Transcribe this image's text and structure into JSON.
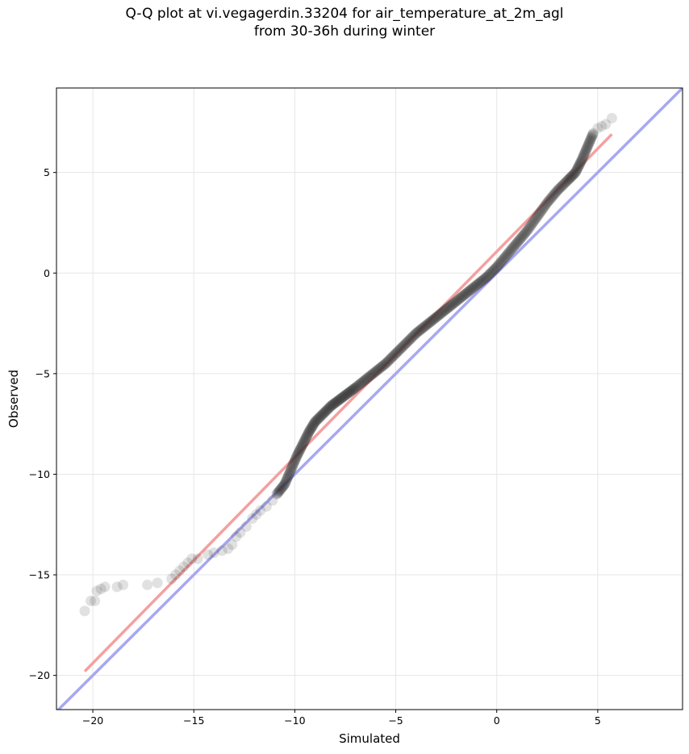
{
  "chart_data": {
    "type": "scatter",
    "title": "Q-Q plot at vi.vegagerdin.33204 for air_temperature_at_2m_agl\nfrom 30-36h during winter",
    "xlabel": "Simulated",
    "ylabel": "Observed",
    "xlim": [
      -21.8,
      9.2
    ],
    "ylim": [
      -21.7,
      9.2
    ],
    "xticks": [
      -20,
      -15,
      -10,
      -5,
      0,
      5
    ],
    "yticks": [
      -20,
      -15,
      -10,
      -5,
      0,
      5
    ],
    "xtick_labels": [
      "−20",
      "−15",
      "−10",
      "−5",
      "0",
      "5"
    ],
    "ytick_labels": [
      "−20",
      "−15",
      "−10",
      "−5",
      "0",
      "5"
    ],
    "grid": true,
    "legend": "none",
    "series_colors": {
      "points": "#333333",
      "fit_line": "#f4a0a0",
      "identity_line": "#a8a8f0"
    },
    "fit_line": {
      "x": [
        -20.4,
        5.7
      ],
      "y": [
        -19.8,
        6.9
      ]
    },
    "identity_line": {
      "x": [
        -21.8,
        9.2
      ],
      "y": [
        -21.8,
        9.2
      ]
    },
    "outlier_points": [
      [
        -20.4,
        -16.8
      ],
      [
        -20.1,
        -16.3
      ],
      [
        -19.9,
        -16.3
      ],
      [
        -19.8,
        -15.8
      ],
      [
        -19.6,
        -15.7
      ],
      [
        -19.4,
        -15.6
      ],
      [
        -18.8,
        -15.6
      ],
      [
        -18.5,
        -15.5
      ],
      [
        -17.3,
        -15.5
      ],
      [
        -16.8,
        -15.4
      ],
      [
        -16.1,
        -15.2
      ],
      [
        -15.9,
        -15.0
      ],
      [
        -15.7,
        -14.8
      ],
      [
        -15.5,
        -14.6
      ],
      [
        -15.3,
        -14.4
      ],
      [
        -15.1,
        -14.2
      ],
      [
        -14.8,
        -14.2
      ],
      [
        -14.3,
        -14.0
      ],
      [
        -14.0,
        -13.9
      ],
      [
        -13.6,
        -13.8
      ],
      [
        -13.3,
        -13.7
      ],
      [
        -13.1,
        -13.5
      ],
      [
        -12.9,
        -13.1
      ],
      [
        -12.7,
        -12.9
      ],
      [
        -12.4,
        -12.6
      ],
      [
        -12.1,
        -12.2
      ],
      [
        -11.9,
        -12.0
      ],
      [
        -11.7,
        -11.8
      ],
      [
        -11.4,
        -11.6
      ],
      [
        -11.1,
        -11.3
      ],
      [
        5.0,
        7.2
      ],
      [
        5.2,
        7.3
      ],
      [
        5.4,
        7.4
      ],
      [
        5.7,
        7.7
      ]
    ],
    "quantile_curve": {
      "x": [
        -10.9,
        -10.5,
        -10.2,
        -9.9,
        -9.6,
        -9.3,
        -9.0,
        -8.6,
        -8.2,
        -7.8,
        -7.4,
        -7.0,
        -6.5,
        -6.0,
        -5.5,
        -5.0,
        -4.5,
        -4.0,
        -3.5,
        -3.0,
        -2.5,
        -2.0,
        -1.5,
        -1.0,
        -0.5,
        0.0,
        0.5,
        1.0,
        1.5,
        2.0,
        2.5,
        3.0,
        3.5,
        3.9,
        4.2,
        4.5,
        4.8
      ],
      "y": [
        -11.0,
        -10.5,
        -9.8,
        -9.1,
        -8.5,
        -7.9,
        -7.4,
        -7.0,
        -6.6,
        -6.3,
        -6.0,
        -5.7,
        -5.3,
        -4.9,
        -4.5,
        -4.0,
        -3.5,
        -3.0,
        -2.6,
        -2.2,
        -1.8,
        -1.4,
        -1.0,
        -0.6,
        -0.2,
        0.3,
        0.9,
        1.5,
        2.1,
        2.8,
        3.5,
        4.1,
        4.6,
        5.0,
        5.6,
        6.3,
        7.0
      ]
    },
    "point_count": 600
  }
}
